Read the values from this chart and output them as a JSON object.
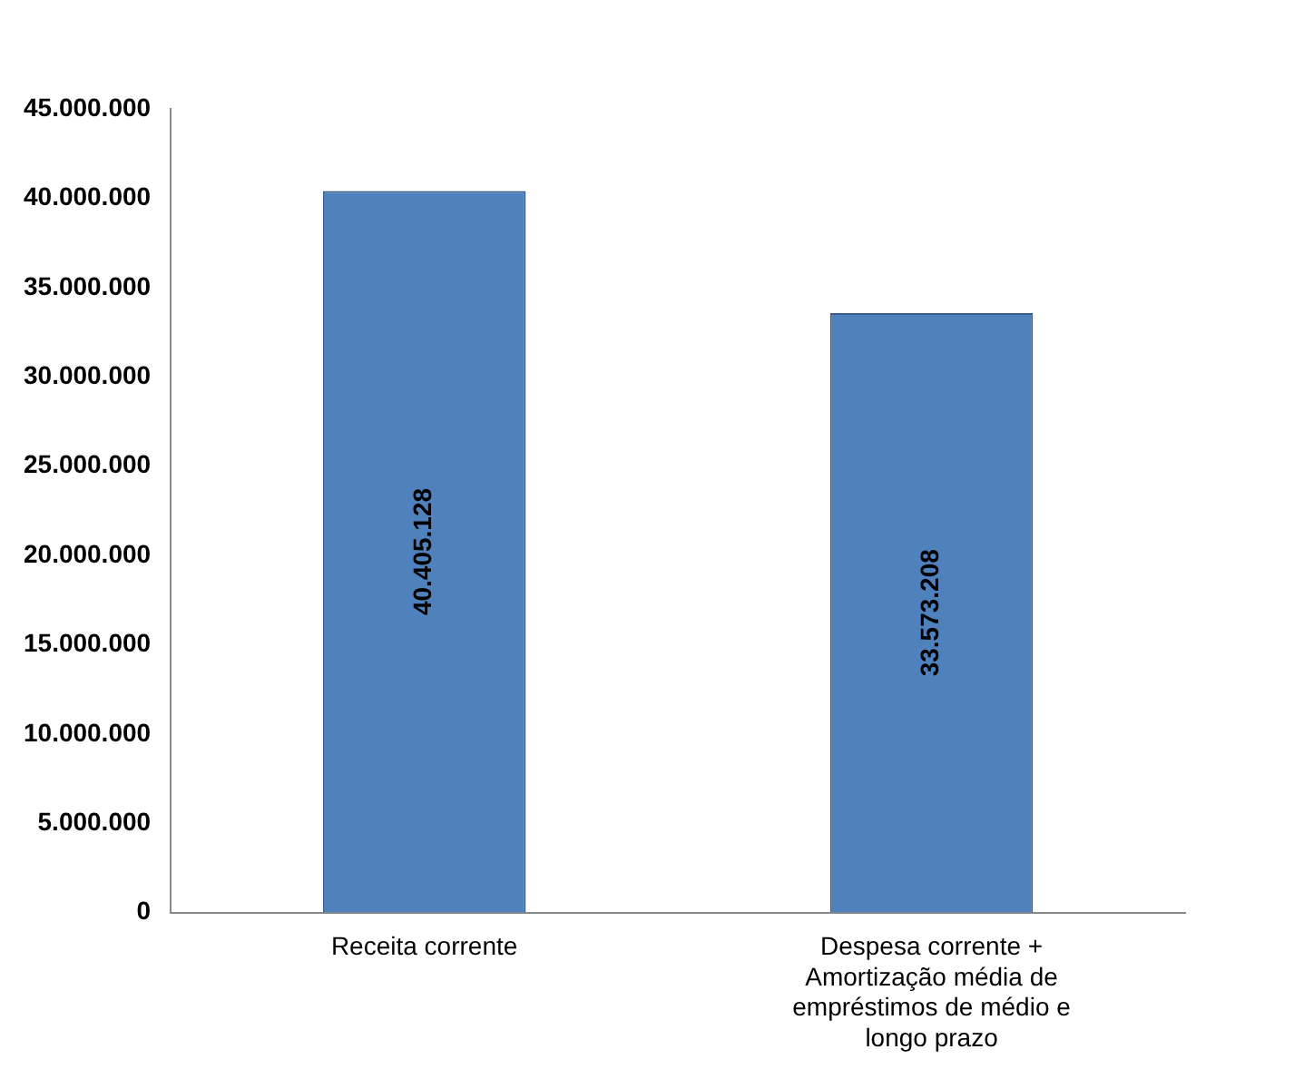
{
  "chart_data": {
    "type": "bar",
    "categories": [
      "Receita corrente",
      "Despesa corrente + Amortização média de empréstimos de médio e longo prazo"
    ],
    "values": [
      40405128,
      33573208
    ],
    "value_labels": [
      "40.405.128",
      "33.573.208"
    ],
    "color": "#4f81bd",
    "ylim": [
      0,
      45000000
    ],
    "yticks": [
      {
        "value": 0,
        "label": "0"
      },
      {
        "value": 5000000,
        "label": "5.000.000"
      },
      {
        "value": 10000000,
        "label": "10.000.000"
      },
      {
        "value": 15000000,
        "label": "15.000.000"
      },
      {
        "value": 20000000,
        "label": "20.000.000"
      },
      {
        "value": 25000000,
        "label": "25.000.000"
      },
      {
        "value": 30000000,
        "label": "30.000.000"
      },
      {
        "value": 35000000,
        "label": "35.000.000"
      },
      {
        "value": 40000000,
        "label": "40.000.000"
      },
      {
        "value": 45000000,
        "label": "45.000.000"
      }
    ]
  }
}
